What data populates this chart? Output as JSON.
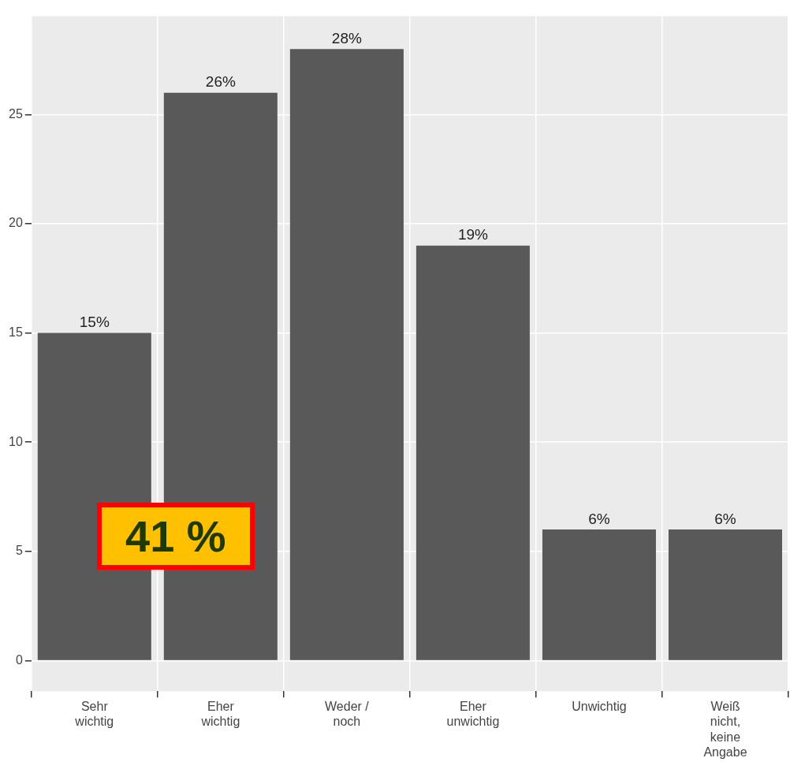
{
  "chart_data": {
    "type": "bar",
    "categories": [
      "Sehr\nwichtig",
      "Eher\nwichtig",
      "Weder /\nnoch",
      "Eher\nunwichtig",
      "Unwichtig",
      "Weiß\nnicht,\nkeine\nAngabe"
    ],
    "values": [
      15,
      26,
      28,
      19,
      6,
      6
    ],
    "value_labels": [
      "15%",
      "26%",
      "28%",
      "19%",
      "6%",
      "6%"
    ],
    "color": "#595959",
    "ylim": [
      -1.4,
      29.5
    ],
    "yticks": [
      0,
      5,
      10,
      15,
      20,
      25
    ],
    "grid": true,
    "annotations": [
      "41 %"
    ]
  }
}
